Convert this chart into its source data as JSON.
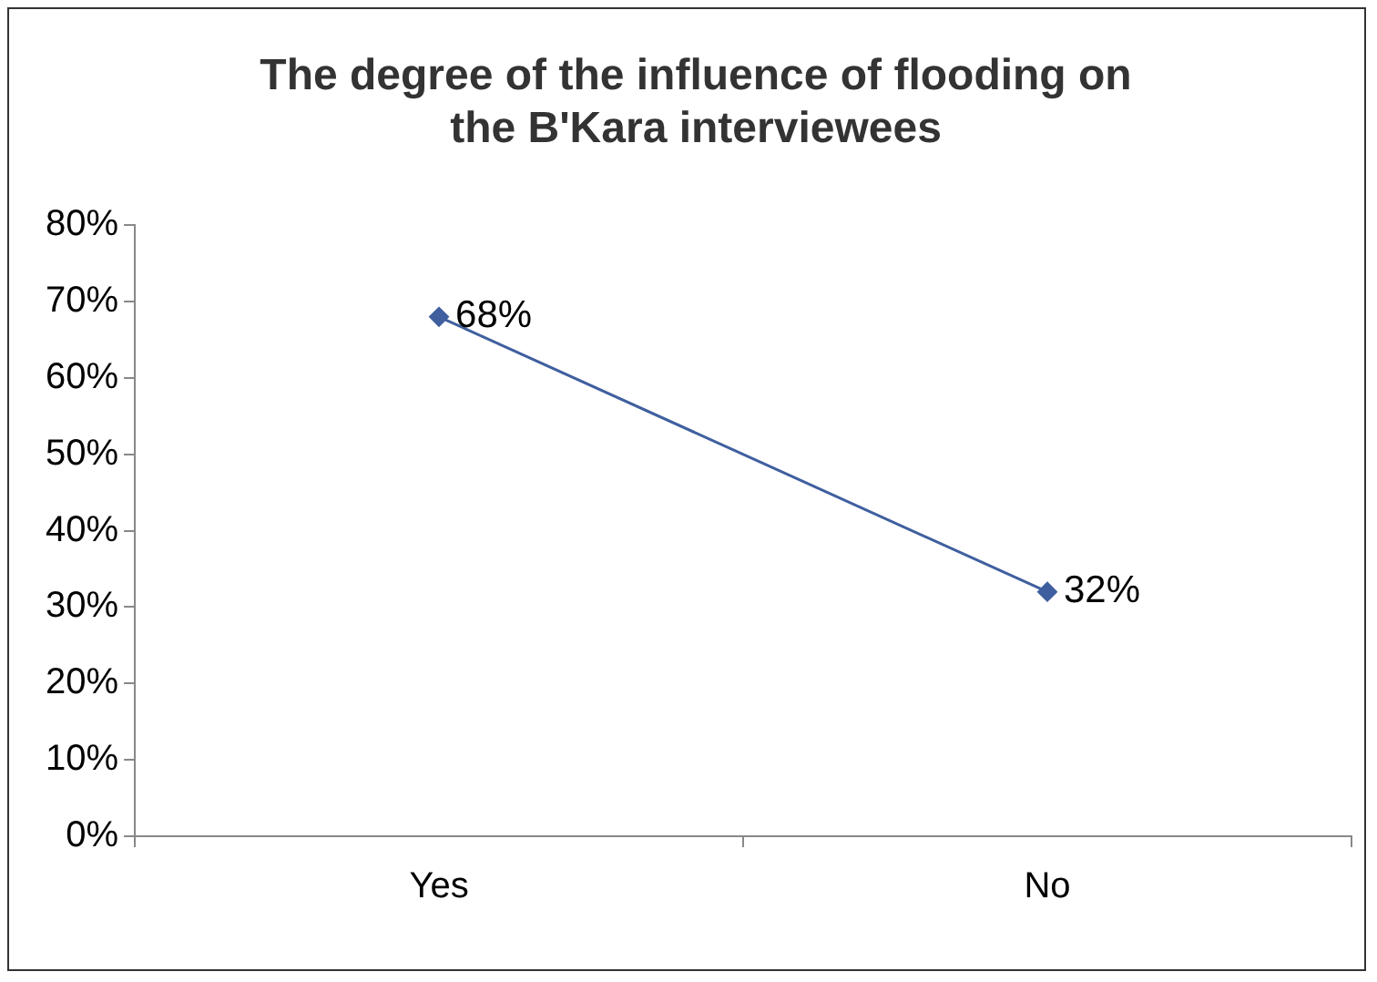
{
  "chart_data": {
    "type": "line",
    "title": "The degree of the influence of flooding on the B'Kara interviewees",
    "categories": [
      "Yes",
      "No"
    ],
    "series": [
      {
        "color": "#3f5f9f",
        "values": [
          68,
          32
        ],
        "value_labels": [
          "68%",
          "32%"
        ]
      }
    ],
    "ylim": [
      0,
      80
    ],
    "yticks": [
      {
        "value": 0,
        "label": "0%"
      },
      {
        "value": 10,
        "label": "10%"
      },
      {
        "value": 20,
        "label": "20%"
      },
      {
        "value": 30,
        "label": "30%"
      },
      {
        "value": 40,
        "label": "40%"
      },
      {
        "value": 50,
        "label": "50%"
      },
      {
        "value": 60,
        "label": "60%"
      },
      {
        "value": 70,
        "label": "70%"
      },
      {
        "value": 80,
        "label": "80%"
      }
    ],
    "grid": false,
    "legend": false,
    "marker": "diamond",
    "line_style": "solid"
  }
}
